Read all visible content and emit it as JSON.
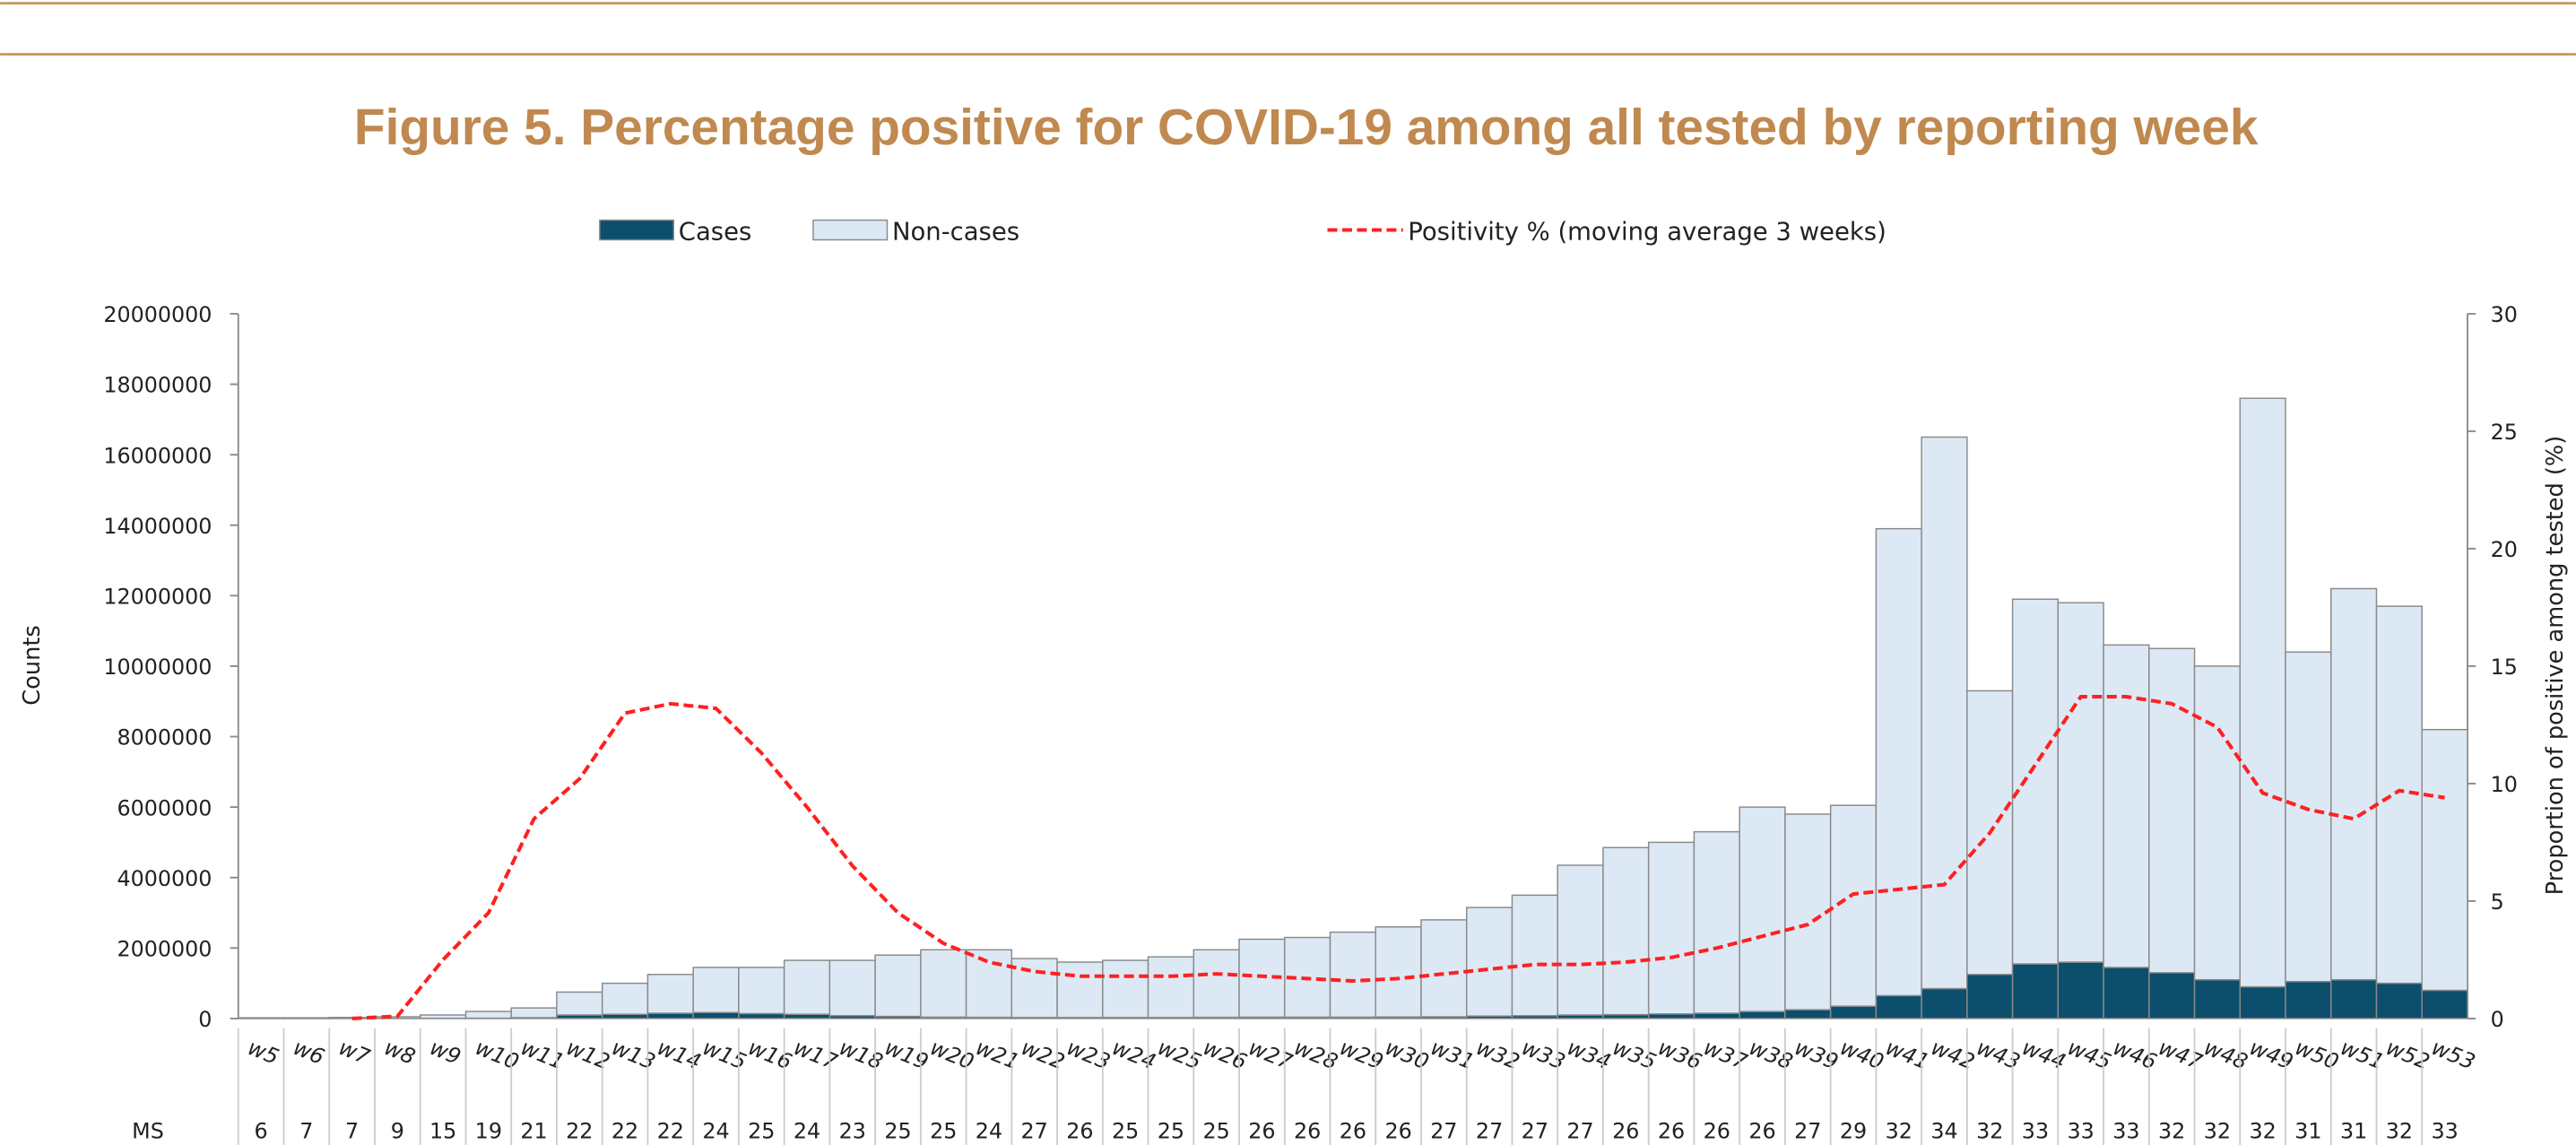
{
  "chart_data": {
    "type": "bar",
    "stacked": true,
    "title": "Figure 5. Percentage positive for COVID-19 among all tested by reporting week",
    "y_label": "Counts",
    "y2_label": "Proportion of positive among tested (%)",
    "categories": [
      "w5",
      "w6",
      "w7",
      "w8",
      "w9",
      "w10",
      "w11",
      "w12",
      "w13",
      "w14",
      "w15",
      "w16",
      "w17",
      "w18",
      "w19",
      "w20",
      "w21",
      "w22",
      "w23",
      "w24",
      "w25",
      "w26",
      "w27",
      "w28",
      "w29",
      "w30",
      "w31",
      "w32",
      "w33",
      "w34",
      "w35",
      "w36",
      "w37",
      "w38",
      "w39",
      "w40",
      "w41",
      "w42",
      "w43",
      "w44",
      "w45",
      "w46",
      "w47",
      "w48",
      "w49",
      "w50",
      "w51",
      "w52",
      "w53"
    ],
    "series": [
      {
        "name": "Cases",
        "color": "#0b4f6c",
        "values": [
          1000,
          1000,
          2000,
          3000,
          5000,
          10000,
          25000,
          100000,
          120000,
          150000,
          170000,
          140000,
          120000,
          80000,
          60000,
          40000,
          35000,
          30000,
          30000,
          30000,
          30000,
          35000,
          40000,
          40000,
          40000,
          45000,
          50000,
          70000,
          80000,
          100000,
          110000,
          130000,
          150000,
          200000,
          250000,
          350000,
          650000,
          850000,
          1250000,
          1550000,
          1600000,
          1450000,
          1300000,
          1100000,
          900000,
          1050000,
          1100000,
          1000000,
          800000
        ]
      },
      {
        "name": "Non-cases",
        "color": "#dce9f5",
        "values": [
          19000,
          19000,
          28000,
          47000,
          95000,
          190000,
          275000,
          650000,
          880000,
          1100000,
          1280000,
          1310000,
          1530000,
          1570000,
          1740000,
          1910000,
          1915000,
          1670000,
          1570000,
          1620000,
          1720000,
          1915000,
          2210000,
          2260000,
          2410000,
          2555000,
          2750000,
          3080000,
          3420000,
          4250000,
          4740000,
          4870000,
          5150000,
          5800000,
          5550000,
          5700000,
          13250000,
          15650000,
          8050000,
          10350000,
          10200000,
          9150000,
          9200000,
          8900000,
          16700000,
          9350000,
          11100000,
          10700000,
          7400000
        ]
      },
      {
        "name": "Positivity % (moving average 3 weeks)",
        "color": "#ff2020",
        "type": "line",
        "axis": "y2",
        "values": [
          null,
          null,
          0,
          0.1,
          2.5,
          4.5,
          8.5,
          10.2,
          13,
          13.4,
          13.2,
          11.3,
          9,
          6.5,
          4.5,
          3.2,
          2.4,
          2,
          1.8,
          1.8,
          1.8,
          1.9,
          1.8,
          1.7,
          1.6,
          1.7,
          1.9,
          2.1,
          2.3,
          2.3,
          2.4,
          2.6,
          3,
          3.5,
          4,
          5.3,
          5.5,
          5.7,
          7.9,
          10.8,
          13.7,
          13.7,
          13.4,
          12.4,
          9.6,
          8.9,
          8.5,
          9.7,
          9.4
        ]
      }
    ],
    "ylim": [
      0,
      20000000
    ],
    "yticks": [
      0,
      2000000,
      4000000,
      6000000,
      8000000,
      10000000,
      12000000,
      14000000,
      16000000,
      18000000,
      20000000
    ],
    "y2lim": [
      0,
      30
    ],
    "y2ticks": [
      0,
      5,
      10,
      15,
      20,
      25,
      30
    ],
    "ms_row": {
      "label": "MS",
      "values": [
        6,
        7,
        7,
        9,
        15,
        19,
        21,
        22,
        22,
        22,
        24,
        25,
        24,
        23,
        25,
        25,
        24,
        27,
        26,
        25,
        25,
        25,
        26,
        26,
        26,
        26,
        27,
        27,
        27,
        27,
        26,
        26,
        26,
        26,
        27,
        29,
        32,
        34,
        32,
        33,
        33,
        33,
        32,
        32,
        32,
        31,
        31,
        32,
        33
      ]
    }
  }
}
